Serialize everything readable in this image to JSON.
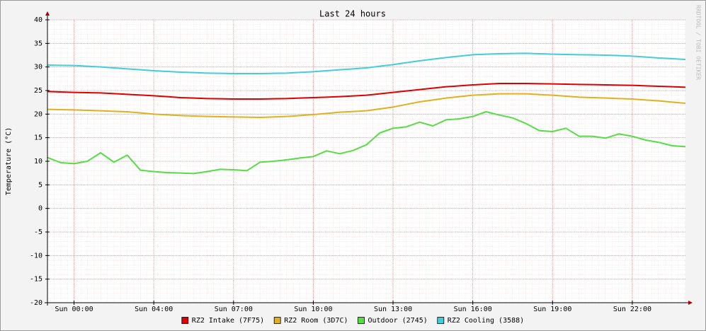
{
  "chart_data": {
    "type": "line",
    "title": "Last 24 hours",
    "y_label": "Temperature (°C)",
    "watermark": "RRDTOOL / TOBI OETIKER",
    "x": [
      0,
      0.5,
      1,
      1.5,
      2,
      2.5,
      3,
      3.5,
      4,
      4.5,
      5,
      5.5,
      6,
      6.5,
      7,
      7.5,
      8,
      8.5,
      9,
      9.5,
      10,
      10.5,
      11,
      11.5,
      12,
      12.5,
      13,
      13.5,
      14,
      14.5,
      15,
      15.5,
      16,
      16.5,
      17,
      17.5,
      18,
      18.5,
      19,
      19.5,
      20,
      20.5,
      21,
      21.5,
      22,
      22.5,
      23,
      23.5,
      24
    ],
    "xlim": [
      0,
      24
    ],
    "xticks": [
      {
        "value": 1,
        "label": "Sun 00:00"
      },
      {
        "value": 4,
        "label": "Sun 04:00"
      },
      {
        "value": 7,
        "label": "Sun 07:00"
      },
      {
        "value": 10,
        "label": "Sun 10:00"
      },
      {
        "value": 13,
        "label": "Sun 13:00"
      },
      {
        "value": 16,
        "label": "Sun 16:00"
      },
      {
        "value": 19,
        "label": "Sun 19:00"
      },
      {
        "value": 22,
        "label": "Sun 22:00"
      }
    ],
    "ylim": [
      -20,
      40
    ],
    "yticks": [
      -20,
      -15,
      -10,
      -5,
      0,
      5,
      10,
      15,
      20,
      25,
      30,
      35,
      40
    ],
    "grid": true,
    "series": [
      {
        "name": "RZ2 Intake (7F75)",
        "color": "#dd0000",
        "values": [
          24.8,
          24.7,
          24.6,
          24.55,
          24.5,
          24.35,
          24.2,
          24.05,
          23.9,
          23.7,
          23.5,
          23.4,
          23.3,
          23.25,
          23.2,
          23.2,
          23.2,
          23.25,
          23.3,
          23.4,
          23.5,
          23.6,
          23.7,
          23.85,
          24.0,
          24.3,
          24.6,
          24.9,
          25.2,
          25.5,
          25.8,
          26.0,
          26.2,
          26.35,
          26.5,
          26.5,
          26.5,
          26.45,
          26.4,
          26.35,
          26.3,
          26.25,
          26.2,
          26.15,
          26.1,
          26.0,
          25.9,
          25.8,
          25.7
        ]
      },
      {
        "name": "RZ2 Room (3D7C)",
        "color": "#e0b020",
        "values": [
          21.0,
          20.95,
          20.9,
          20.8,
          20.7,
          20.6,
          20.5,
          20.25,
          20.0,
          19.85,
          19.7,
          19.6,
          19.5,
          19.45,
          19.4,
          19.35,
          19.3,
          19.4,
          19.5,
          19.7,
          19.9,
          20.15,
          20.4,
          20.55,
          20.7,
          21.1,
          21.5,
          22.05,
          22.6,
          23.0,
          23.4,
          23.7,
          24.0,
          24.15,
          24.3,
          24.3,
          24.3,
          24.15,
          24.0,
          23.8,
          23.6,
          23.5,
          23.4,
          23.3,
          23.2,
          23.0,
          22.8,
          22.55,
          22.3
        ]
      },
      {
        "name": "Outdoor (2745)",
        "color": "#55dd44",
        "values": [
          10.8,
          9.7,
          9.5,
          10.0,
          11.8,
          9.8,
          11.3,
          8.1,
          7.8,
          7.6,
          7.5,
          7.4,
          7.8,
          8.3,
          8.2,
          8.0,
          9.8,
          10.0,
          10.3,
          10.7,
          11.0,
          12.2,
          11.6,
          12.3,
          13.5,
          16.0,
          17.0,
          17.3,
          18.3,
          17.5,
          18.8,
          19.0,
          19.5,
          20.5,
          19.8,
          19.2,
          18.0,
          16.5,
          16.3,
          17.0,
          15.3,
          15.3,
          14.9,
          15.8,
          15.3,
          14.5,
          14.0,
          13.3,
          13.1
        ]
      },
      {
        "name": "RZ2 Cooling (3588)",
        "color": "#44ccdd",
        "values": [
          30.4,
          30.35,
          30.3,
          30.15,
          30.0,
          29.8,
          29.6,
          29.4,
          29.2,
          29.05,
          28.9,
          28.8,
          28.7,
          28.65,
          28.6,
          28.6,
          28.6,
          28.65,
          28.7,
          28.85,
          29.0,
          29.2,
          29.4,
          29.6,
          29.8,
          30.15,
          30.5,
          30.9,
          31.3,
          31.65,
          32.0,
          32.3,
          32.6,
          32.7,
          32.8,
          32.85,
          32.9,
          32.8,
          32.7,
          32.65,
          32.6,
          32.55,
          32.5,
          32.4,
          32.3,
          32.1,
          31.9,
          31.75,
          31.6
        ]
      }
    ]
  }
}
